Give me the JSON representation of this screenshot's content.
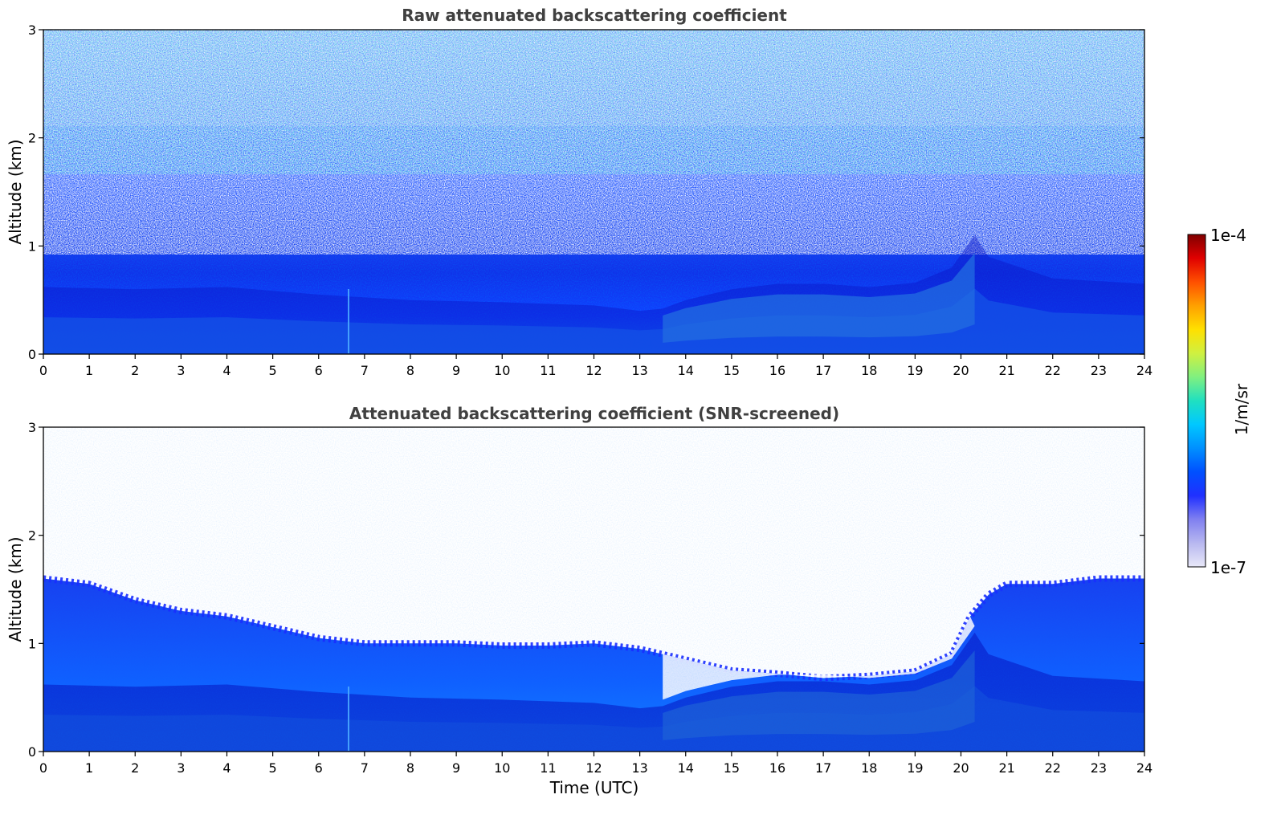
{
  "chart_data": [
    {
      "type": "heatmap",
      "title": "Raw attenuated backscattering coefficient",
      "xlabel": "",
      "ylabel": "Altitude (km)",
      "xlim": [
        0,
        24
      ],
      "ylim": [
        0,
        3
      ],
      "x_ticks": [
        "0",
        "1",
        "2",
        "3",
        "4",
        "5",
        "6",
        "7",
        "8",
        "9",
        "10",
        "11",
        "12",
        "13",
        "14",
        "15",
        "16",
        "17",
        "18",
        "19",
        "20",
        "21",
        "22",
        "23",
        "24"
      ],
      "y_ticks": [
        "0",
        "1",
        "2",
        "3"
      ],
      "layer_boundary_km": [
        [
          0,
          0.62
        ],
        [
          2,
          0.6
        ],
        [
          4,
          0.62
        ],
        [
          6,
          0.55
        ],
        [
          8,
          0.5
        ],
        [
          10,
          0.48
        ],
        [
          12,
          0.45
        ],
        [
          13,
          0.4
        ],
        [
          13.5,
          0.42
        ],
        [
          14,
          0.5
        ],
        [
          15,
          0.6
        ],
        [
          16,
          0.65
        ],
        [
          17,
          0.65
        ],
        [
          18,
          0.62
        ],
        [
          19,
          0.66
        ],
        [
          19.8,
          0.8
        ],
        [
          20.3,
          1.1
        ],
        [
          20.6,
          0.9
        ],
        [
          22,
          0.7
        ],
        [
          24,
          0.65
        ]
      ]
    },
    {
      "type": "heatmap",
      "title": "Attenuated backscattering coefficient (SNR-screened)",
      "xlabel": "Time (UTC)",
      "ylabel": "Altitude (km)",
      "xlim": [
        0,
        24
      ],
      "ylim": [
        0,
        3
      ],
      "x_ticks": [
        "0",
        "1",
        "2",
        "3",
        "4",
        "5",
        "6",
        "7",
        "8",
        "9",
        "10",
        "11",
        "12",
        "13",
        "14",
        "15",
        "16",
        "17",
        "18",
        "19",
        "20",
        "21",
        "22",
        "23",
        "24"
      ],
      "y_ticks": [
        "0",
        "1",
        "2",
        "3"
      ],
      "screened_top_km": [
        [
          0,
          1.6
        ],
        [
          1,
          1.55
        ],
        [
          2,
          1.4
        ],
        [
          3,
          1.3
        ],
        [
          4,
          1.25
        ],
        [
          5,
          1.15
        ],
        [
          6,
          1.05
        ],
        [
          7,
          1.0
        ],
        [
          8,
          1.0
        ],
        [
          9,
          1.0
        ],
        [
          10,
          0.98
        ],
        [
          11,
          0.98
        ],
        [
          12,
          1.0
        ],
        [
          13,
          0.95
        ],
        [
          13.5,
          0.9
        ],
        [
          14,
          0.85
        ],
        [
          15,
          0.75
        ],
        [
          16,
          0.72
        ],
        [
          17,
          0.68
        ],
        [
          18,
          0.7
        ],
        [
          19,
          0.74
        ],
        [
          19.8,
          0.9
        ],
        [
          20.2,
          1.25
        ],
        [
          20.6,
          1.45
        ],
        [
          21,
          1.55
        ],
        [
          22,
          1.55
        ],
        [
          23,
          1.6
        ],
        [
          24,
          1.6
        ]
      ]
    }
  ],
  "colorbar": {
    "label": "1/m/sr",
    "max_label": "1e-4",
    "min_label": "1e-7",
    "colors": [
      "#e8e8f8",
      "#b8b8f0",
      "#8080f0",
      "#2030ff",
      "#0050ff",
      "#0090ff",
      "#00c8ff",
      "#20e0c0",
      "#80f080",
      "#d0f040",
      "#ffe000",
      "#ffa000",
      "#ff5000",
      "#e00000",
      "#800000"
    ]
  }
}
